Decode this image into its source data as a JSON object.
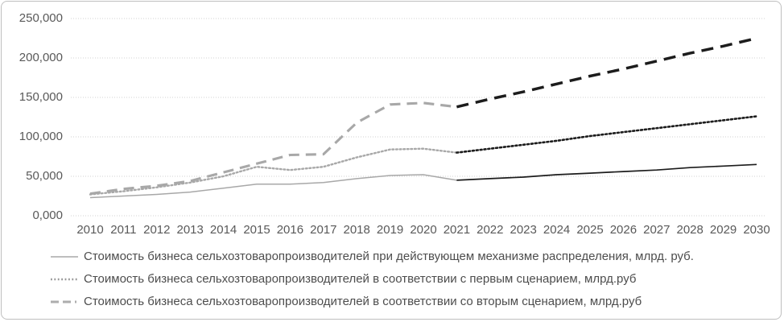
{
  "chart_data": {
    "type": "line",
    "x": [
      2010,
      2011,
      2012,
      2013,
      2014,
      2015,
      2016,
      2017,
      2018,
      2019,
      2020,
      2021,
      2022,
      2023,
      2024,
      2025,
      2026,
      2027,
      2028,
      2029,
      2030
    ],
    "xlabel": "",
    "ylabel": "",
    "title": "",
    "ylim": [
      0,
      250000
    ],
    "ytick_labels": [
      "0,000",
      "50,000",
      "100,000",
      "150,000",
      "200,000",
      "250,000"
    ],
    "ytick_values": [
      0,
      50000,
      100000,
      150000,
      200000,
      250000
    ],
    "grid": "horizontal-dotted",
    "legend_position": "bottom-left",
    "forecast_start_year": 2021,
    "forecast_start_index": 11,
    "history_color": "#a8a8a8",
    "forecast_color": "#1c1c1c",
    "series": [
      {
        "name": "Стоимость бизнеса сельхозтоваропроизводителей при действующем механизме распределения, млрд. руб.",
        "line_style": "solid",
        "values": [
          23000,
          25000,
          27000,
          30000,
          35000,
          40000,
          40000,
          42000,
          47000,
          51000,
          52000,
          45000,
          47000,
          49000,
          52000,
          54000,
          56000,
          58000,
          61000,
          63000,
          65000
        ]
      },
      {
        "name": "Стоимость бизнеса сельхозтоваропроизводителей в соответствии с первым сценарием, млрд.руб",
        "line_style": "dotted",
        "values": [
          27000,
          31000,
          36000,
          42000,
          50000,
          62000,
          58000,
          62000,
          74000,
          84000,
          85000,
          80000,
          85000,
          90000,
          95000,
          101000,
          106000,
          111000,
          116000,
          121000,
          126000
        ]
      },
      {
        "name": "Стоимость бизнеса сельхозтоваропроизводителей в соответствии со вторым сценарием, млрд.руб",
        "line_style": "dashed",
        "values": [
          28000,
          34000,
          38000,
          44000,
          55000,
          66000,
          77000,
          78000,
          118000,
          141000,
          143000,
          138000,
          148000,
          157000,
          167000,
          177000,
          186000,
          196000,
          206000,
          215000,
          225000
        ]
      }
    ],
    "colors": {
      "text": "#595959",
      "gridline": "#d2d2d2",
      "history_line": "#a8a8a8",
      "forecast_line": "#1c1c1c",
      "frame_border": "#bfbfbf"
    }
  }
}
